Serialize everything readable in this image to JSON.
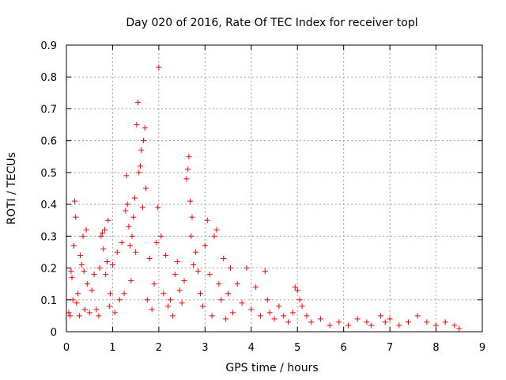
{
  "chart_data": {
    "type": "scatter",
    "title": "Day 020 of 2016, Rate Of TEC Index for receiver topl",
    "xlabel": "GPS time / hours",
    "ylabel": "ROTI / TECUs",
    "xlim": [
      0,
      9
    ],
    "ylim": [
      0,
      0.9
    ],
    "xticks": [
      "0",
      "1",
      "2",
      "3",
      "4",
      "5",
      "6",
      "7",
      "8",
      "9"
    ],
    "yticks": [
      "0",
      "0.1",
      "0.2",
      "0.3",
      "0.4",
      "0.5",
      "0.6",
      "0.7",
      "0.8",
      "0.9"
    ],
    "grid": true,
    "marker": "+",
    "series_color": "#ff0000",
    "series": [
      {
        "name": "ROTI",
        "points": [
          [
            0.05,
            0.06
          ],
          [
            0.08,
            0.05
          ],
          [
            0.1,
            0.19
          ],
          [
            0.12,
            0.17
          ],
          [
            0.14,
            0.1
          ],
          [
            0.16,
            0.27
          ],
          [
            0.18,
            0.41
          ],
          [
            0.2,
            0.36
          ],
          [
            0.22,
            0.09
          ],
          [
            0.25,
            0.12
          ],
          [
            0.28,
            0.05
          ],
          [
            0.3,
            0.24
          ],
          [
            0.33,
            0.21
          ],
          [
            0.36,
            0.3
          ],
          [
            0.38,
            0.19
          ],
          [
            0.4,
            0.07
          ],
          [
            0.43,
            0.32
          ],
          [
            0.45,
            0.15
          ],
          [
            0.5,
            0.06
          ],
          [
            0.55,
            0.13
          ],
          [
            0.6,
            0.18
          ],
          [
            0.65,
            0.07
          ],
          [
            0.7,
            0.05
          ],
          [
            0.72,
            0.2
          ],
          [
            0.75,
            0.3
          ],
          [
            0.78,
            0.31
          ],
          [
            0.8,
            0.26
          ],
          [
            0.83,
            0.32
          ],
          [
            0.85,
            0.18
          ],
          [
            0.88,
            0.22
          ],
          [
            0.9,
            0.35
          ],
          [
            0.93,
            0.08
          ],
          [
            0.95,
            0.12
          ],
          [
            1.0,
            0.21
          ],
          [
            1.05,
            0.06
          ],
          [
            1.1,
            0.25
          ],
          [
            1.15,
            0.1
          ],
          [
            1.2,
            0.28
          ],
          [
            1.25,
            0.12
          ],
          [
            1.28,
            0.38
          ],
          [
            1.3,
            0.49
          ],
          [
            1.32,
            0.4
          ],
          [
            1.35,
            0.33
          ],
          [
            1.38,
            0.27
          ],
          [
            1.4,
            0.16
          ],
          [
            1.42,
            0.3
          ],
          [
            1.45,
            0.36
          ],
          [
            1.48,
            0.42
          ],
          [
            1.5,
            0.25
          ],
          [
            1.52,
            0.65
          ],
          [
            1.55,
            0.72
          ],
          [
            1.57,
            0.5
          ],
          [
            1.6,
            0.52
          ],
          [
            1.62,
            0.57
          ],
          [
            1.65,
            0.39
          ],
          [
            1.67,
            0.6
          ],
          [
            1.7,
            0.64
          ],
          [
            1.72,
            0.45
          ],
          [
            1.75,
            0.1
          ],
          [
            1.8,
            0.23
          ],
          [
            1.85,
            0.07
          ],
          [
            1.9,
            0.15
          ],
          [
            1.95,
            0.28
          ],
          [
            1.98,
            0.39
          ],
          [
            2.0,
            0.83
          ],
          [
            2.05,
            0.3
          ],
          [
            2.1,
            0.12
          ],
          [
            2.15,
            0.24
          ],
          [
            2.2,
            0.08
          ],
          [
            2.25,
            0.1
          ],
          [
            2.3,
            0.05
          ],
          [
            2.35,
            0.18
          ],
          [
            2.4,
            0.22
          ],
          [
            2.45,
            0.13
          ],
          [
            2.5,
            0.09
          ],
          [
            2.55,
            0.16
          ],
          [
            2.6,
            0.48
          ],
          [
            2.63,
            0.51
          ],
          [
            2.65,
            0.55
          ],
          [
            2.68,
            0.41
          ],
          [
            2.7,
            0.3
          ],
          [
            2.72,
            0.36
          ],
          [
            2.75,
            0.21
          ],
          [
            2.8,
            0.25
          ],
          [
            2.85,
            0.19
          ],
          [
            2.9,
            0.12
          ],
          [
            2.95,
            0.08
          ],
          [
            3.0,
            0.27
          ],
          [
            3.05,
            0.35
          ],
          [
            3.1,
            0.18
          ],
          [
            3.15,
            0.05
          ],
          [
            3.2,
            0.3
          ],
          [
            3.25,
            0.32
          ],
          [
            3.3,
            0.15
          ],
          [
            3.35,
            0.1
          ],
          [
            3.4,
            0.23
          ],
          [
            3.45,
            0.04
          ],
          [
            3.5,
            0.12
          ],
          [
            3.55,
            0.2
          ],
          [
            3.6,
            0.06
          ],
          [
            3.7,
            0.15
          ],
          [
            3.8,
            0.09
          ],
          [
            3.9,
            0.2
          ],
          [
            4.0,
            0.07
          ],
          [
            4.1,
            0.14
          ],
          [
            4.2,
            0.05
          ],
          [
            4.3,
            0.19
          ],
          [
            4.35,
            0.1
          ],
          [
            4.4,
            0.06
          ],
          [
            4.5,
            0.04
          ],
          [
            4.6,
            0.08
          ],
          [
            4.7,
            0.05
          ],
          [
            4.8,
            0.03
          ],
          [
            4.9,
            0.06
          ],
          [
            4.95,
            0.14
          ],
          [
            5.0,
            0.13
          ],
          [
            5.05,
            0.1
          ],
          [
            5.1,
            0.08
          ],
          [
            5.2,
            0.05
          ],
          [
            5.3,
            0.03
          ],
          [
            5.5,
            0.04
          ],
          [
            5.7,
            0.02
          ],
          [
            5.9,
            0.03
          ],
          [
            6.1,
            0.02
          ],
          [
            6.3,
            0.04
          ],
          [
            6.5,
            0.03
          ],
          [
            6.6,
            0.02
          ],
          [
            6.8,
            0.05
          ],
          [
            6.9,
            0.03
          ],
          [
            7.0,
            0.04
          ],
          [
            7.2,
            0.02
          ],
          [
            7.4,
            0.03
          ],
          [
            7.6,
            0.05
          ],
          [
            7.8,
            0.03
          ],
          [
            8.0,
            0.02
          ],
          [
            8.2,
            0.03
          ],
          [
            8.4,
            0.02
          ],
          [
            8.5,
            0.01
          ]
        ]
      }
    ]
  }
}
